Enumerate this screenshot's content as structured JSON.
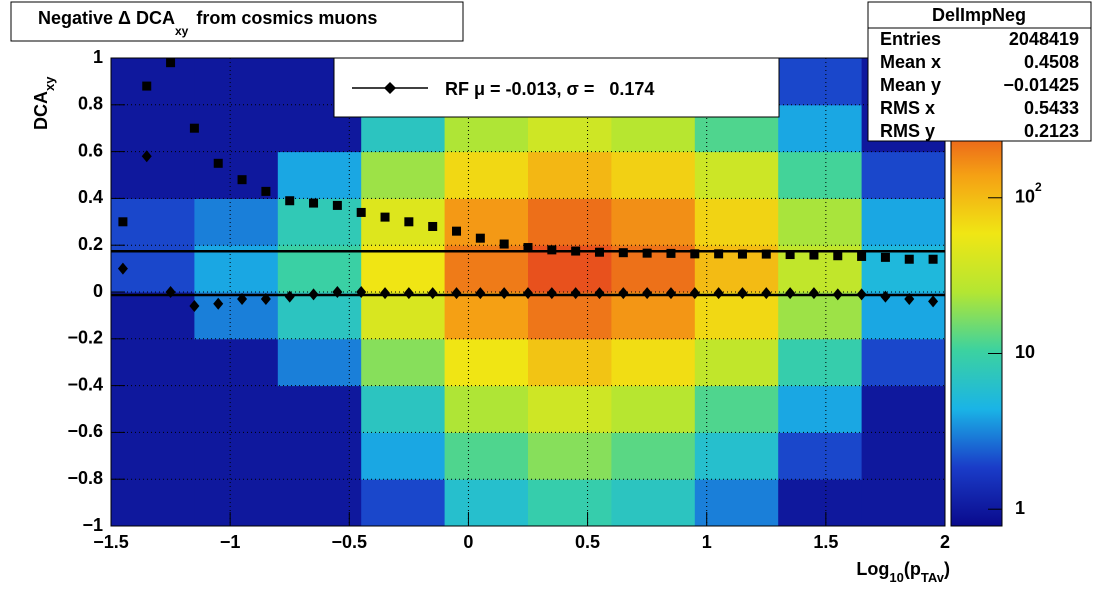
{
  "chart_data": {
    "type": "heatmap",
    "title": {
      "text": "Negative Δ DCA",
      "sub": "xy",
      "rest": "from cosmics muons"
    },
    "x_label": [
      "Log",
      "10",
      "(p",
      "TAv",
      ")"
    ],
    "y_label": [
      "DCA",
      "xy"
    ],
    "xlim": [
      -1.5,
      2
    ],
    "ylim": [
      -1,
      1
    ],
    "xticks": [
      {
        "value": -1.5,
        "label": "−1.5"
      },
      {
        "value": -1,
        "label": "−1"
      },
      {
        "value": -0.5,
        "label": "−0.5"
      },
      0,
      0.5,
      1,
      1.5,
      2
    ],
    "yticks": [
      {
        "value": -1,
        "label": "−1"
      },
      {
        "value": -0.8,
        "label": "−0.8"
      },
      {
        "value": -0.6,
        "label": "−0.6"
      },
      {
        "value": -0.4,
        "label": "−0.4"
      },
      {
        "value": -0.2,
        "label": "−0.2"
      },
      0,
      0.2,
      0.4,
      0.6,
      0.8,
      1
    ],
    "grid": true,
    "xbins": [
      -1.5,
      -1.15,
      -0.8,
      -0.45,
      -0.1,
      0.25,
      0.6,
      0.95,
      1.3,
      1.65,
      2
    ],
    "ybins": [
      -1,
      -0.8,
      -0.6,
      -0.4,
      -0.2,
      0,
      0.2,
      0.4,
      0.6,
      0.8,
      1
    ],
    "z": [
      [
        1,
        1,
        1,
        2,
        6,
        9,
        7,
        3,
        1,
        1
      ],
      [
        1,
        1,
        1,
        4,
        12,
        18,
        13,
        6,
        2,
        1
      ],
      [
        1,
        1,
        1,
        7,
        24,
        36,
        26,
        12,
        4,
        1
      ],
      [
        1,
        1,
        3,
        18,
        60,
        90,
        66,
        30,
        9,
        2
      ],
      [
        1,
        3,
        7,
        42,
        140,
        210,
        154,
        70,
        21,
        4
      ],
      [
        2,
        4,
        10,
        60,
        200,
        300,
        220,
        100,
        30,
        5
      ],
      [
        2,
        3,
        8,
        45,
        150,
        225,
        165,
        75,
        23,
        4
      ],
      [
        1,
        1,
        4,
        21,
        70,
        105,
        77,
        35,
        11,
        2
      ],
      [
        1,
        1,
        1,
        7,
        24,
        36,
        26,
        12,
        4,
        1
      ],
      [
        1,
        1,
        1,
        3,
        10,
        15,
        11,
        5,
        2,
        1
      ]
    ],
    "zlim": [
      0.78,
      790
    ],
    "zscale": "log",
    "zticks": [
      1,
      10,
      {
        "value": 100,
        "label": "10",
        "exponent": "2"
      }
    ],
    "palette": [
      "#0a0a8c",
      "#1a3cc8",
      "#1ab4e6",
      "#3cd2a0",
      "#b4e632",
      "#f0e614",
      "#f5a014",
      "#e6461e",
      "#780000"
    ],
    "x": [
      -1.45,
      -1.35,
      -1.25,
      -1.15,
      -1.05,
      -0.95,
      -0.85,
      -0.75,
      -0.65,
      -0.55,
      -0.45,
      -0.35,
      -0.25,
      -0.15,
      -0.05,
      0.05,
      0.15,
      0.25,
      0.35,
      0.45,
      0.55,
      0.65,
      0.75,
      0.85,
      0.95,
      1.05,
      1.15,
      1.25,
      1.35,
      1.45,
      1.55,
      1.65,
      1.75,
      1.85,
      1.95
    ],
    "series": [
      {
        "marker": "square",
        "color": "#000000",
        "values": [
          0.3,
          0.88,
          0.98,
          0.7,
          0.55,
          0.48,
          0.43,
          0.39,
          0.38,
          0.37,
          0.34,
          0.32,
          0.3,
          0.28,
          0.26,
          0.23,
          0.205,
          0.19,
          0.18,
          0.175,
          0.17,
          0.168,
          0.166,
          0.165,
          0.163,
          0.163,
          0.162,
          0.162,
          0.16,
          0.158,
          0.155,
          0.152,
          0.148,
          0.14,
          0.14
        ]
      },
      {
        "marker": "diamond",
        "color": "#000000",
        "values": [
          0.1,
          0.58,
          0,
          -0.06,
          -0.05,
          -0.03,
          -0.03,
          -0.02,
          -0.01,
          0,
          0,
          -0.005,
          -0.005,
          -0.005,
          -0.005,
          -0.005,
          -0.005,
          -0.005,
          -0.005,
          -0.005,
          -0.005,
          -0.005,
          -0.005,
          -0.005,
          -0.005,
          -0.005,
          -0.005,
          -0.005,
          -0.005,
          -0.005,
          -0.01,
          -0.01,
          -0.02,
          -0.03,
          -0.04
        ]
      }
    ],
    "fit_lines": [
      0.174,
      -0.013
    ],
    "legend": "RF μ = -0.013, σ =   0.174",
    "stats": {
      "name": "DelImpNeg",
      "rows": [
        [
          "Entries",
          "2048419"
        ],
        [
          "Mean x",
          "0.4508"
        ],
        [
          "Mean y",
          "−0.01425"
        ],
        [
          "RMS x",
          "0.5433"
        ],
        [
          "RMS y",
          "0.2123"
        ]
      ]
    }
  }
}
